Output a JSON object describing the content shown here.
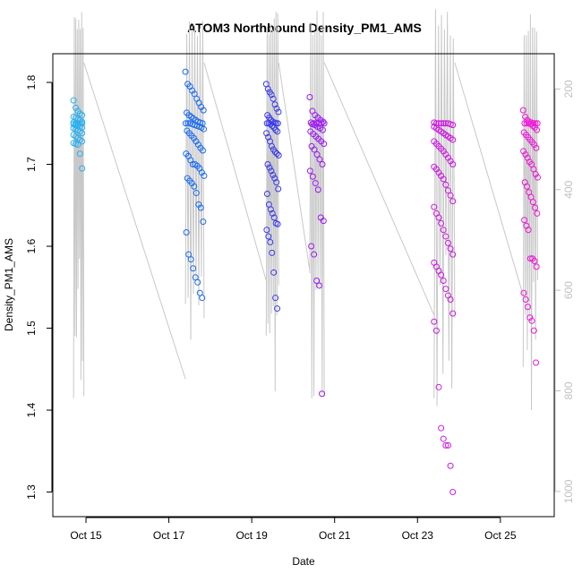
{
  "chart_data": {
    "type": "scatter",
    "title": "ATOM3 Northbound Density_PM1_AMS",
    "xlabel": "Date",
    "ylabel": "Density_PM1_AMS",
    "x_range_days": [
      14.2,
      26.3
    ],
    "x_ticks": [
      {
        "day": 15,
        "label": "Oct 15"
      },
      {
        "day": 17,
        "label": "Oct 17"
      },
      {
        "day": 19,
        "label": "Oct 19"
      },
      {
        "day": 21,
        "label": "Oct 21"
      },
      {
        "day": 23,
        "label": "Oct 23"
      },
      {
        "day": 25,
        "label": "Oct 25"
      }
    ],
    "ylim": [
      1.27,
      1.835
    ],
    "y_ticks": [
      1.3,
      1.4,
      1.5,
      1.6,
      1.7,
      1.8
    ],
    "y2_label": "",
    "y2_lim_reversed": [
      1050,
      130
    ],
    "y2_ticks": [
      200,
      400,
      600,
      800,
      1000
    ],
    "grid": false,
    "legend": "none",
    "point_color_start": "#1fb4ee",
    "point_color_end": "#ff16d8",
    "altitude_line_color": "#c8c8c8",
    "flights": [
      {
        "day_start": 14.7,
        "day_end": 14.95,
        "color": "#2ab0f0",
        "points": [
          1.778,
          1.769,
          1.765,
          1.762,
          1.76,
          1.758,
          1.757,
          1.755,
          1.754,
          1.752,
          1.751,
          1.75,
          1.75,
          1.75,
          1.75,
          1.749,
          1.748,
          1.747,
          1.746,
          1.745,
          1.744,
          1.743,
          1.742,
          1.74,
          1.738,
          1.736,
          1.734,
          1.732,
          1.73,
          1.728,
          1.726,
          1.725,
          1.724,
          1.713,
          1.695
        ]
      },
      {
        "day_start": 17.4,
        "day_end": 17.85,
        "color": "#1a6cf0",
        "points": [
          1.813,
          1.798,
          1.795,
          1.79,
          1.786,
          1.78,
          1.775,
          1.77,
          1.766,
          1.763,
          1.76,
          1.758,
          1.756,
          1.754,
          1.752,
          1.751,
          1.75,
          1.75,
          1.75,
          1.75,
          1.749,
          1.748,
          1.747,
          1.746,
          1.745,
          1.743,
          1.741,
          1.738,
          1.735,
          1.732,
          1.728,
          1.724,
          1.72,
          1.717,
          1.713,
          1.71,
          1.705,
          1.7,
          1.7,
          1.698,
          1.695,
          1.69,
          1.686,
          1.683,
          1.68,
          1.677,
          1.673,
          1.665,
          1.651,
          1.647,
          1.63,
          1.617,
          1.59,
          1.584,
          1.573,
          1.562,
          1.556,
          1.543,
          1.537
        ]
      },
      {
        "day_start": 19.35,
        "day_end": 19.65,
        "color": "#3a3aee",
        "points": [
          1.798,
          1.792,
          1.788,
          1.785,
          1.78,
          1.773,
          1.768,
          1.764,
          1.76,
          1.757,
          1.754,
          1.752,
          1.751,
          1.75,
          1.75,
          1.75,
          1.75,
          1.749,
          1.747,
          1.745,
          1.742,
          1.74,
          1.738,
          1.733,
          1.728,
          1.722,
          1.718,
          1.715,
          1.713,
          1.711,
          1.7,
          1.696,
          1.692,
          1.687,
          1.683,
          1.678,
          1.67,
          1.664,
          1.651,
          1.645,
          1.64,
          1.635,
          1.628,
          1.627,
          1.62,
          1.612,
          1.605,
          1.592,
          1.568,
          1.537,
          1.524
        ]
      },
      {
        "day_start": 20.4,
        "day_end": 20.75,
        "color": "#9a1af0",
        "points": [
          1.782,
          1.765,
          1.76,
          1.757,
          1.754,
          1.752,
          1.751,
          1.75,
          1.75,
          1.75,
          1.75,
          1.75,
          1.749,
          1.748,
          1.746,
          1.744,
          1.742,
          1.74,
          1.737,
          1.734,
          1.731,
          1.728,
          1.725,
          1.722,
          1.718,
          1.712,
          1.706,
          1.7,
          1.692,
          1.685,
          1.677,
          1.669,
          1.635,
          1.631,
          1.6,
          1.59,
          1.558,
          1.552,
          1.42
        ]
      },
      {
        "day_start": 23.4,
        "day_end": 23.9,
        "color": "#cc1ae0",
        "points": [
          1.751,
          1.75,
          1.75,
          1.75,
          1.75,
          1.75,
          1.75,
          1.749,
          1.748,
          1.746,
          1.744,
          1.742,
          1.74,
          1.738,
          1.736,
          1.734,
          1.732,
          1.73,
          1.728,
          1.725,
          1.722,
          1.719,
          1.716,
          1.712,
          1.708,
          1.704,
          1.7,
          1.697,
          1.694,
          1.69,
          1.686,
          1.682,
          1.675,
          1.668,
          1.662,
          1.655,
          1.648,
          1.64,
          1.635,
          1.628,
          1.62,
          1.612,
          1.604,
          1.597,
          1.59,
          1.58,
          1.575,
          1.57,
          1.565,
          1.558,
          1.548,
          1.54,
          1.535,
          1.518,
          1.508,
          1.497,
          1.428,
          1.378,
          1.365,
          1.357,
          1.357,
          1.332,
          1.3
        ]
      },
      {
        "day_start": 25.55,
        "day_end": 25.9,
        "color": "#ee18d8",
        "points": [
          1.766,
          1.758,
          1.754,
          1.752,
          1.751,
          1.75,
          1.75,
          1.75,
          1.75,
          1.75,
          1.75,
          1.749,
          1.747,
          1.745,
          1.742,
          1.739,
          1.736,
          1.733,
          1.73,
          1.727,
          1.724,
          1.72,
          1.716,
          1.712,
          1.708,
          1.703,
          1.7,
          1.694,
          1.688,
          1.684,
          1.678,
          1.673,
          1.666,
          1.66,
          1.654,
          1.647,
          1.64,
          1.632,
          1.625,
          1.62,
          1.585,
          1.585,
          1.582,
          1.575,
          1.543,
          1.535,
          1.526,
          1.513,
          1.509,
          1.497,
          1.458
        ]
      }
    ]
  }
}
